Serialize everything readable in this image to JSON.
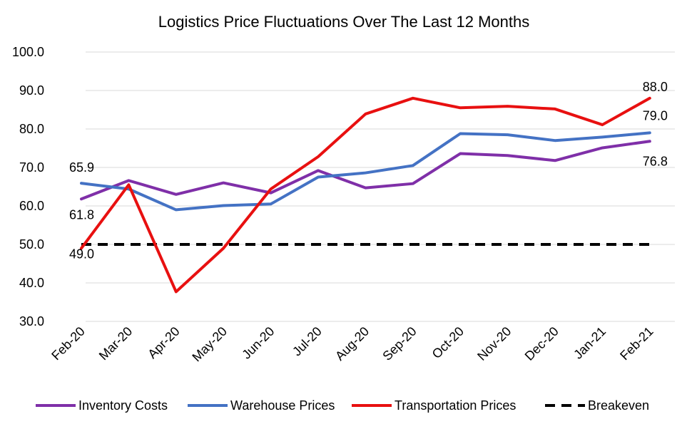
{
  "chart_data": {
    "type": "line",
    "title": "Logistics Price Fluctuations Over The Last 12 Months",
    "xlabel": "",
    "ylabel": "",
    "ylim": [
      30,
      100
    ],
    "yticks": [
      "30.0",
      "40.0",
      "50.0",
      "60.0",
      "70.0",
      "80.0",
      "90.0",
      "100.0"
    ],
    "grid": true,
    "legend_placement": "bottom",
    "categories": [
      "Feb-20",
      "Mar-20",
      "Apr-20",
      "May-20",
      "Jun-20",
      "Jul-20",
      "Aug-20",
      "Sep-20",
      "Oct-20",
      "Nov-20",
      "Dec-20",
      "Jan-21",
      "Feb-21"
    ],
    "series": [
      {
        "name": "Inventory Costs",
        "color": "#7f2fa8",
        "dash": "solid",
        "values": [
          61.8,
          66.6,
          63.0,
          66.0,
          63.4,
          69.2,
          64.7,
          65.8,
          73.6,
          73.1,
          71.8,
          75.1,
          76.8
        ],
        "labels": [
          {
            "index": 0,
            "text": "61.8"
          },
          {
            "index": 12,
            "text": "76.8"
          }
        ]
      },
      {
        "name": "Warehouse Prices",
        "color": "#4472c4",
        "dash": "solid",
        "values": [
          65.9,
          64.4,
          59.0,
          60.1,
          60.5,
          67.5,
          68.6,
          70.5,
          78.8,
          78.5,
          77.0,
          77.9,
          79.0
        ],
        "labels": [
          {
            "index": 0,
            "text": "65.9"
          },
          {
            "index": 12,
            "text": "79.0"
          }
        ]
      },
      {
        "name": "Transportation Prices",
        "color": "#e81010",
        "dash": "solid",
        "values": [
          49.0,
          65.5,
          37.7,
          49.0,
          64.4,
          72.8,
          83.9,
          88.0,
          85.5,
          85.9,
          85.2,
          81.1,
          88.0
        ],
        "labels": [
          {
            "index": 0,
            "text": "49.0"
          },
          {
            "index": 12,
            "text": "88.0"
          }
        ]
      },
      {
        "name": "Breakeven",
        "color": "#000000",
        "dash": "dashed",
        "values": [
          50,
          50,
          50,
          50,
          50,
          50,
          50,
          50,
          50,
          50,
          50,
          50,
          50
        ],
        "labels": []
      }
    ]
  }
}
